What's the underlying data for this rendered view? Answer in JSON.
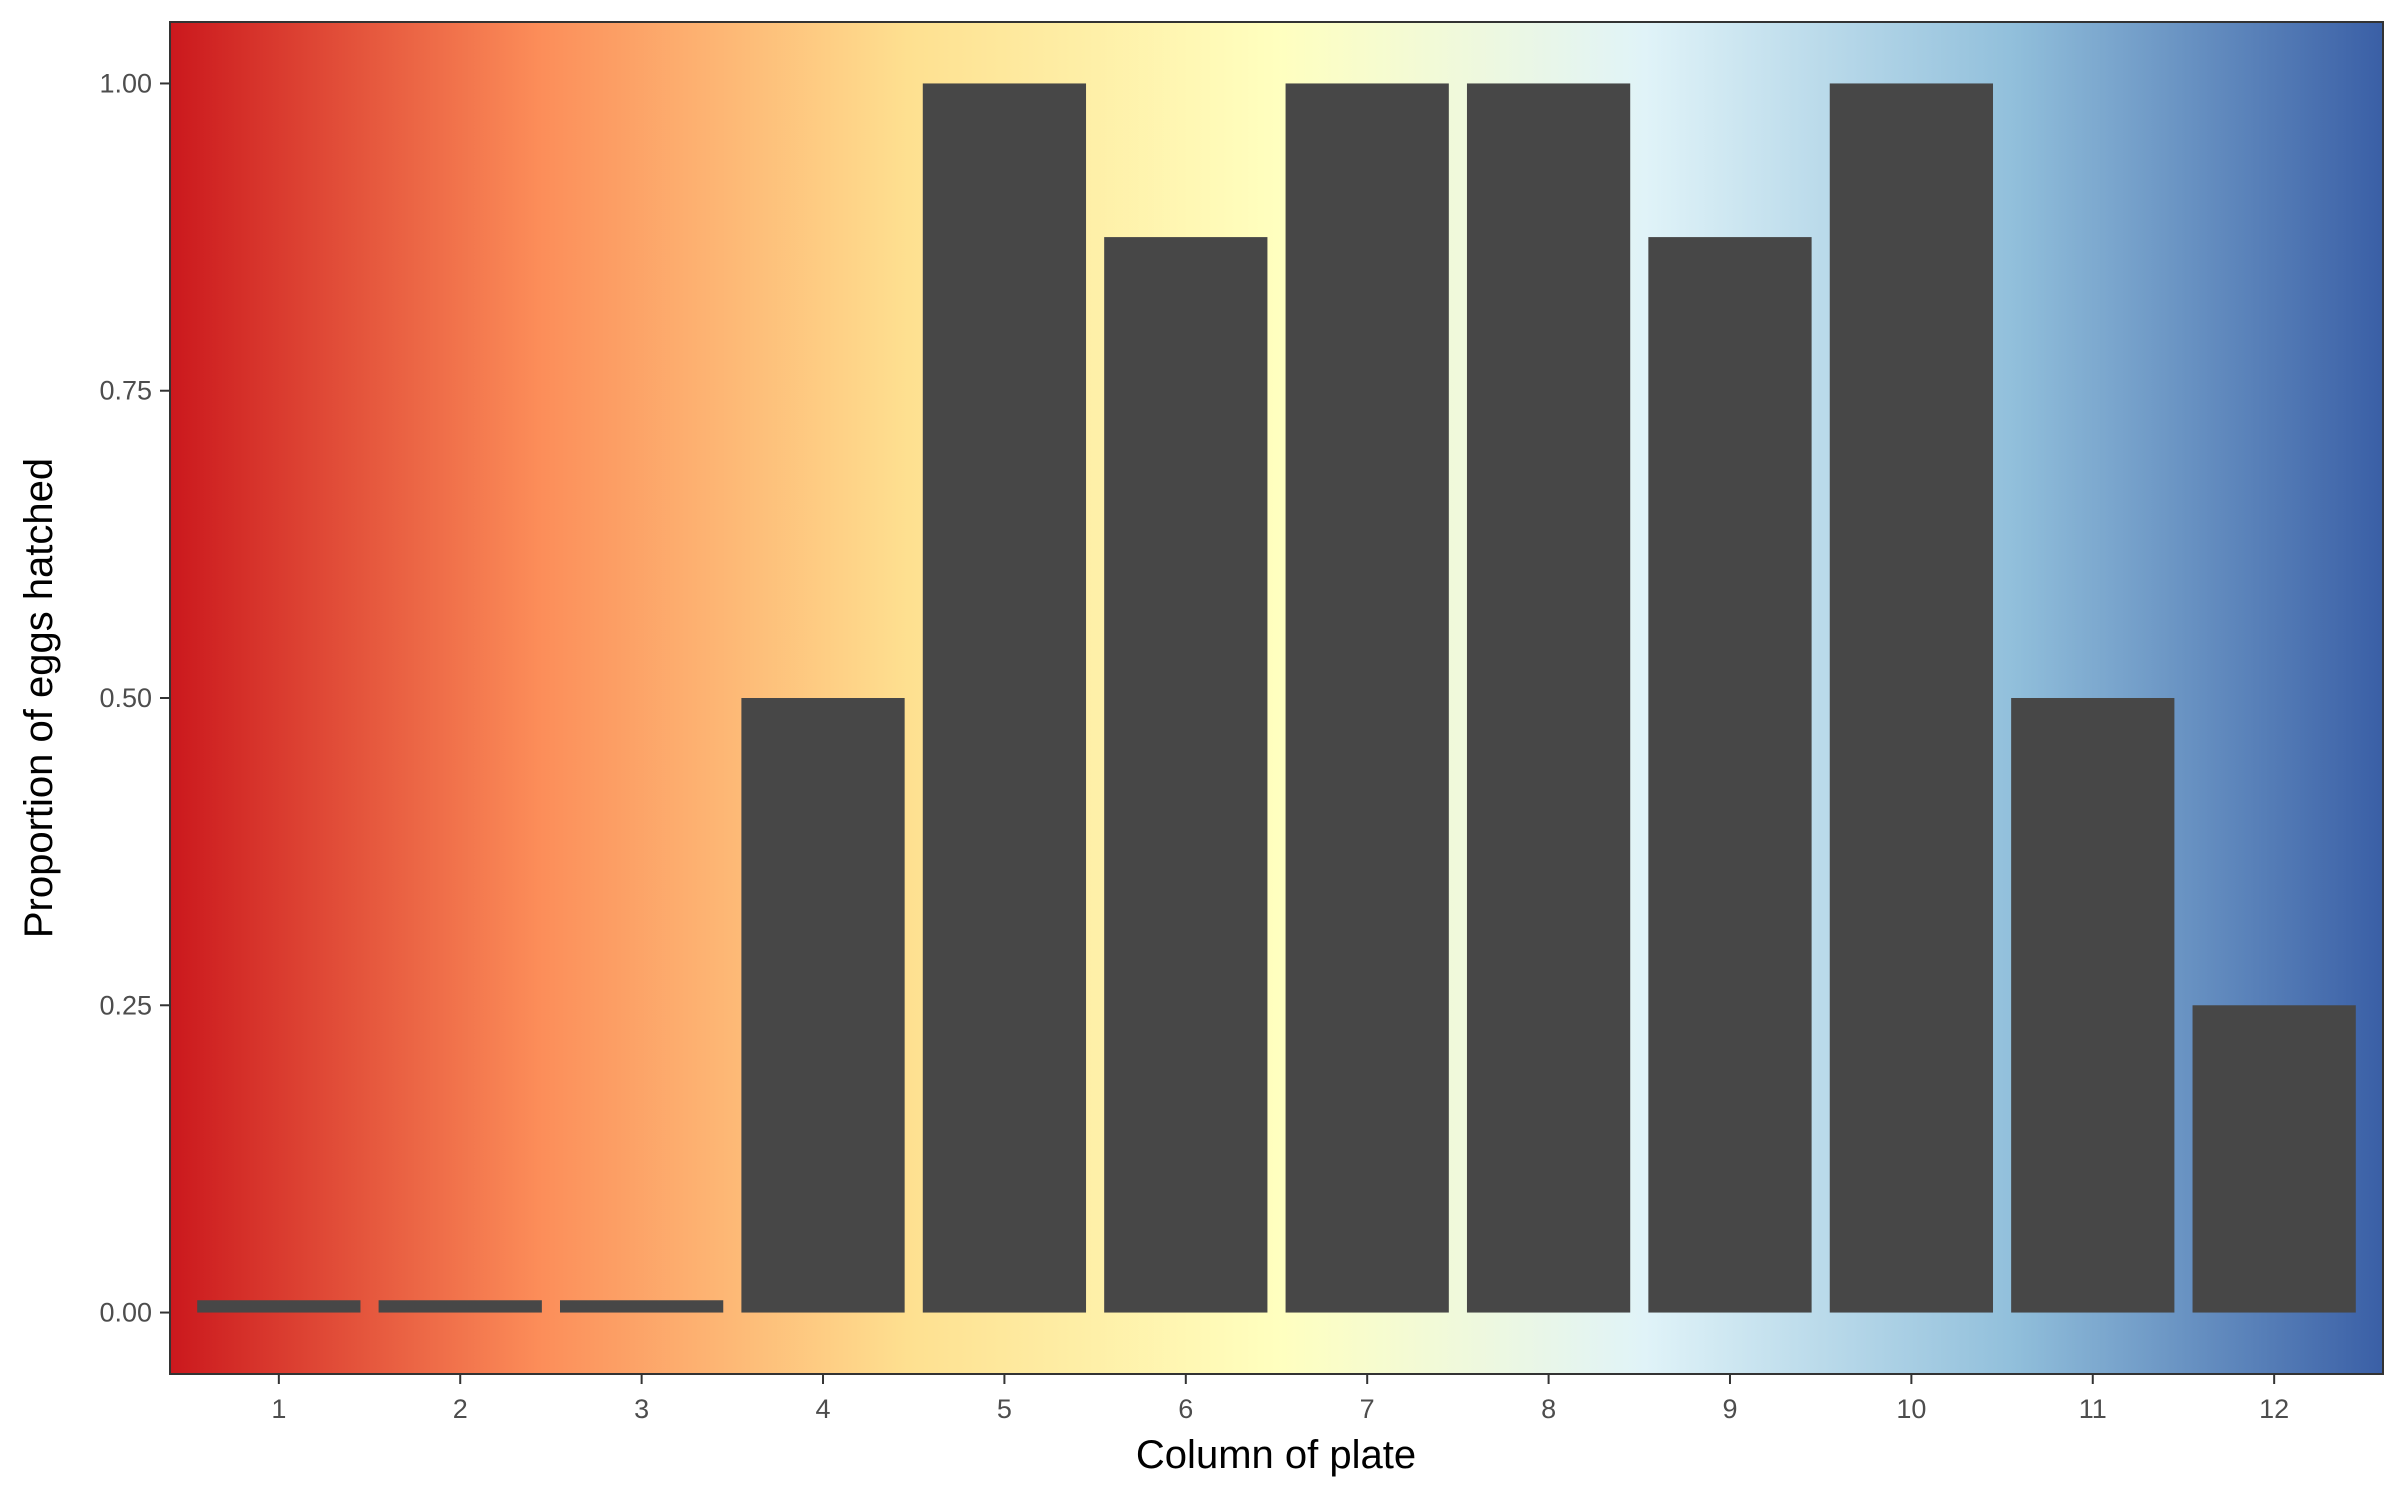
{
  "chart_data": {
    "type": "bar",
    "categories": [
      "1",
      "2",
      "3",
      "4",
      "5",
      "6",
      "7",
      "8",
      "9",
      "10",
      "11",
      "12"
    ],
    "values": [
      0.01,
      0.01,
      0.01,
      0.5,
      1.0,
      0.875,
      1.0,
      1.0,
      0.875,
      1.0,
      0.5,
      0.25
    ],
    "xlabel": "Column of plate",
    "ylabel": "Proportion of eggs hatched",
    "ylim": [
      -0.05,
      1.05
    ],
    "yticks": [
      "0.00",
      "0.25",
      "0.50",
      "0.75",
      "1.00"
    ],
    "ytick_values": [
      0,
      0.25,
      0.5,
      0.75,
      1.0
    ],
    "grid": false,
    "legend": "none",
    "bar_color": "#474747",
    "background_gradient": [
      "#cb181d",
      "#fc8d59",
      "#fee090",
      "#ffffbf",
      "#e0f3f8",
      "#91bfdb",
      "#3a5fa6"
    ]
  }
}
